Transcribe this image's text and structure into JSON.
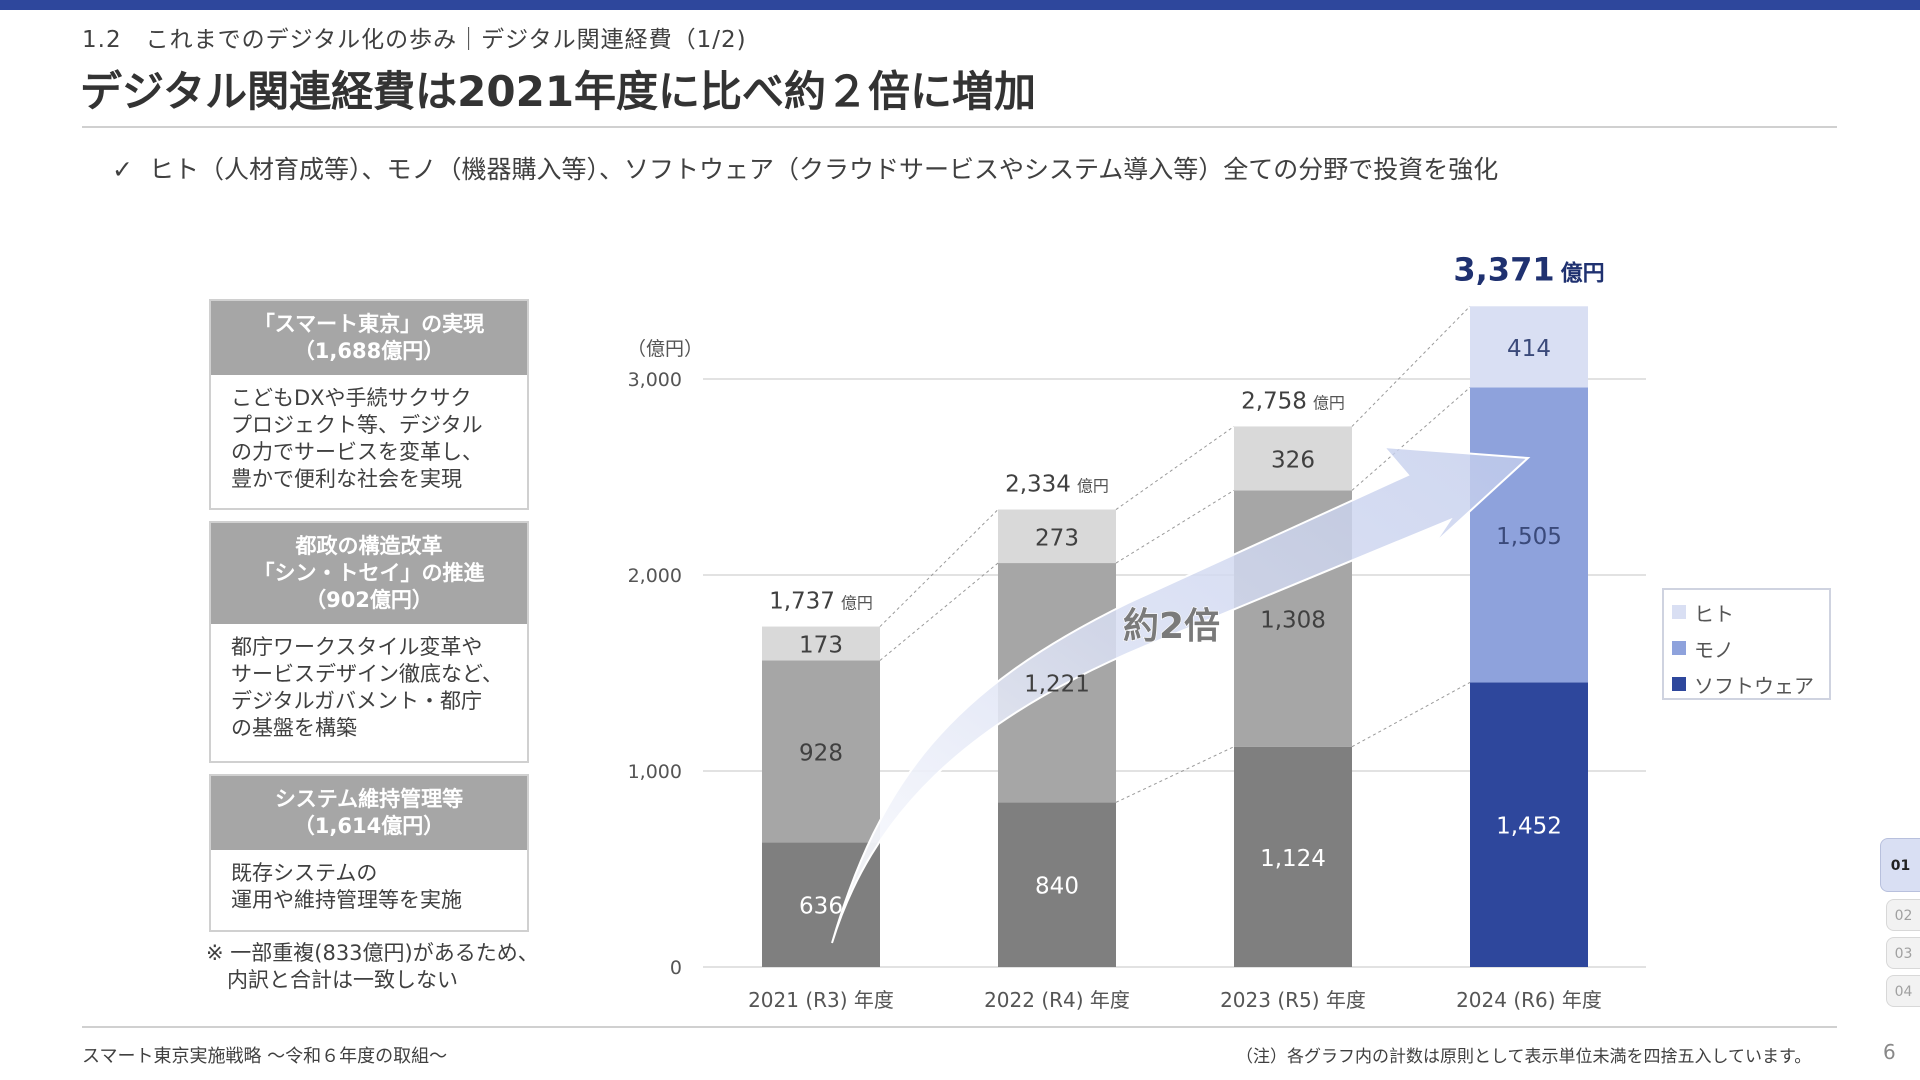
{
  "header": {
    "section": "1.2　これまでのデジタル化の歩み｜デジタル関連経費（1/2)",
    "title": "デジタル関連経費は2021年度に比べ約２倍に増加",
    "bullet_icon": "check-icon",
    "bullet": "ヒト（人材育成等）、モノ（機器購入等）、ソフトウェア（クラウドサービスやシステム導入等）全ての分野で投資を強化"
  },
  "cards": [
    {
      "head": [
        "「スマート東京」の実現",
        "（1,688億円）"
      ],
      "body": [
        "こどもDXや手続サクサク",
        "プロジェクト等、デジタル",
        "の力でサービスを変革し、",
        "豊かで便利な社会を実現"
      ]
    },
    {
      "head": [
        "都政の構造改革",
        "「シン・トセイ」の推進",
        "（902億円）"
      ],
      "body": [
        "都庁ワークスタイル変革や",
        "サービスデザイン徹底など、",
        "デジタルガバメント・都庁",
        "の基盤を構築"
      ]
    },
    {
      "head": [
        "システム維持管理等",
        "（1,614億円）"
      ],
      "body": [
        "既存システムの",
        "運用や維持管理等を実施"
      ]
    }
  ],
  "note": [
    "※ 一部重複(833億円)があるため、",
    "　内訳と合計は一致しない"
  ],
  "chart_data": {
    "type": "bar",
    "stacked": true,
    "title": "",
    "xlabel": "",
    "ylabel": "（億円）",
    "ylim": [
      0,
      3000
    ],
    "yticks": [
      0,
      1000,
      2000,
      3000
    ],
    "ytick_labels": [
      "0",
      "1,000",
      "2,000",
      "3,000"
    ],
    "grid": true,
    "legend_position": "right",
    "categories": [
      "2021 (R3) 年度",
      "2022 (R4) 年度",
      "2023 (R5) 年度",
      "2024 (R6) 年度"
    ],
    "series": [
      {
        "name": "ソフトウェア",
        "values": [
          636,
          840,
          1124,
          1452
        ],
        "labels": [
          "636",
          "840",
          "1,124",
          "1,452"
        ]
      },
      {
        "name": "モノ",
        "values": [
          928,
          1221,
          1308,
          1505
        ],
        "labels": [
          "928",
          "1,221",
          "1,308",
          "1,505"
        ]
      },
      {
        "name": "ヒト",
        "values": [
          173,
          273,
          326,
          414
        ],
        "labels": [
          "173",
          "273",
          "326",
          "414"
        ]
      }
    ],
    "totals": [
      1737,
      2334,
      2758,
      3371
    ],
    "total_labels": [
      "1,737",
      "2,334",
      "2,758",
      "3,371"
    ],
    "total_unit": "億円",
    "annotation": "約2倍",
    "legend_order": [
      "ヒト",
      "モノ",
      "ソフトウェア"
    ],
    "colors_past": {
      "ソフトウェア": "#7F7F7F",
      "モノ": "#A6A6A6",
      "ヒト": "#D9D9D9"
    },
    "colors_highlight": {
      "ソフトウェア": "#2E479C",
      "モノ": "#8EA2DC",
      "ヒト": "#D9DFF3"
    },
    "highlight_index": 3,
    "highlight_total_color": "#1F3170"
  },
  "legend": [
    {
      "label": "ヒト",
      "color": "#D9DFF3"
    },
    {
      "label": "モノ",
      "color": "#8EA2DC"
    },
    {
      "label": "ソフトウェア",
      "color": "#2E479C"
    }
  ],
  "pager": {
    "tabs": [
      "01",
      "02",
      "03",
      "04"
    ],
    "active": "01"
  },
  "footer": {
    "left": "スマート東京実施戦略 ～令和６年度の取組～",
    "note": "（注）各グラフ内の計数は原則として表示単位未満を四捨五入しています。",
    "page_number": "6"
  }
}
